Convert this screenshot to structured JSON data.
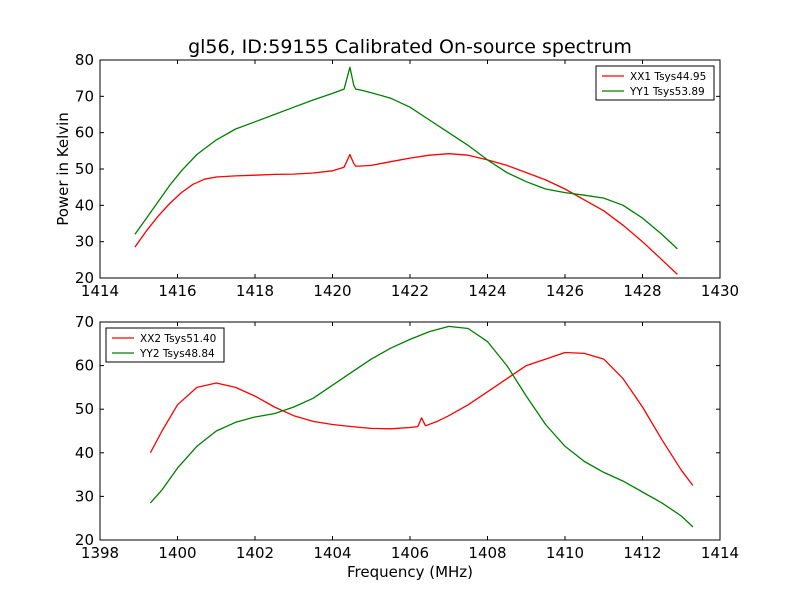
{
  "figure": {
    "title": "gl56, ID:59155 Calibrated On-source spectrum",
    "ylabel": "Power in Kelvin",
    "xlabel": "Frequency (MHz)"
  },
  "chart_data": [
    {
      "type": "line",
      "xlim": [
        1414,
        1430
      ],
      "ylim": [
        20,
        80
      ],
      "xticks": [
        1414,
        1416,
        1418,
        1420,
        1422,
        1424,
        1426,
        1428,
        1430
      ],
      "yticks": [
        20,
        30,
        40,
        50,
        60,
        70,
        80
      ],
      "legend_position": "top-right",
      "series": [
        {
          "name": "XX1 Tsys44.95",
          "color": "#ff0000",
          "x": [
            1414.9,
            1415.2,
            1415.5,
            1415.8,
            1416.1,
            1416.4,
            1416.7,
            1417.0,
            1417.5,
            1418.0,
            1418.5,
            1419.0,
            1419.5,
            1420.0,
            1420.3,
            1420.45,
            1420.55,
            1420.6,
            1420.7,
            1421.0,
            1421.5,
            1422.0,
            1422.5,
            1423.0,
            1423.5,
            1424.0,
            1424.5,
            1425.0,
            1425.5,
            1426.0,
            1426.5,
            1427.0,
            1427.5,
            1428.0,
            1428.5,
            1428.9
          ],
          "y": [
            28.5,
            33.0,
            37.0,
            40.5,
            43.5,
            45.8,
            47.2,
            47.8,
            48.1,
            48.3,
            48.5,
            48.6,
            48.9,
            49.5,
            50.5,
            54.0,
            51.5,
            50.8,
            50.8,
            51.0,
            52.0,
            53.0,
            53.8,
            54.2,
            53.8,
            52.5,
            51.0,
            49.0,
            47.0,
            44.5,
            41.5,
            38.5,
            34.5,
            30.0,
            25.0,
            21.0
          ]
        },
        {
          "name": "YY1 Tsys53.89",
          "color": "#008000",
          "x": [
            1414.9,
            1415.2,
            1415.5,
            1415.8,
            1416.1,
            1416.5,
            1417.0,
            1417.5,
            1418.0,
            1418.5,
            1419.0,
            1419.5,
            1420.0,
            1420.3,
            1420.45,
            1420.55,
            1420.6,
            1420.7,
            1421.0,
            1421.5,
            1422.0,
            1422.5,
            1423.0,
            1423.5,
            1424.0,
            1424.5,
            1425.0,
            1425.5,
            1426.0,
            1426.5,
            1427.0,
            1427.5,
            1428.0,
            1428.5,
            1428.9
          ],
          "y": [
            32.0,
            36.5,
            41.0,
            45.5,
            49.5,
            54.0,
            58.0,
            61.0,
            63.0,
            65.0,
            67.0,
            69.0,
            70.8,
            72.0,
            78.0,
            73.0,
            72.0,
            71.8,
            71.0,
            69.5,
            67.0,
            63.5,
            60.0,
            56.5,
            52.5,
            49.0,
            46.5,
            44.5,
            43.5,
            42.8,
            42.0,
            40.0,
            36.5,
            32.0,
            28.0
          ]
        }
      ]
    },
    {
      "type": "line",
      "xlim": [
        1398,
        1414
      ],
      "ylim": [
        20,
        70
      ],
      "xticks": [
        1398,
        1400,
        1402,
        1404,
        1406,
        1408,
        1410,
        1412,
        1414
      ],
      "yticks": [
        20,
        30,
        40,
        50,
        60,
        70
      ],
      "legend_position": "top-left",
      "series": [
        {
          "name": "XX2 Tsys51.40",
          "color": "#ff0000",
          "x": [
            1399.3,
            1399.6,
            1400.0,
            1400.5,
            1401.0,
            1401.5,
            1402.0,
            1402.5,
            1403.0,
            1403.5,
            1404.0,
            1404.5,
            1405.0,
            1405.5,
            1406.0,
            1406.2,
            1406.3,
            1406.4,
            1406.7,
            1407.0,
            1407.5,
            1408.0,
            1408.5,
            1409.0,
            1409.5,
            1410.0,
            1410.5,
            1411.0,
            1411.5,
            1412.0,
            1412.5,
            1413.0,
            1413.3
          ],
          "y": [
            40.0,
            45.0,
            51.0,
            55.0,
            56.0,
            55.0,
            53.0,
            50.5,
            48.5,
            47.2,
            46.5,
            46.0,
            45.6,
            45.5,
            45.8,
            46.0,
            48.0,
            46.2,
            47.2,
            48.5,
            51.0,
            54.0,
            57.0,
            60.0,
            61.5,
            63.0,
            62.8,
            61.5,
            57.0,
            50.5,
            43.0,
            36.0,
            32.5
          ]
        },
        {
          "name": "YY2 Tsys48.84",
          "color": "#008000",
          "x": [
            1399.3,
            1399.6,
            1400.0,
            1400.5,
            1401.0,
            1401.5,
            1402.0,
            1402.5,
            1403.0,
            1403.5,
            1404.0,
            1404.5,
            1405.0,
            1405.5,
            1406.0,
            1406.5,
            1407.0,
            1407.5,
            1408.0,
            1408.5,
            1409.0,
            1409.5,
            1410.0,
            1410.5,
            1411.0,
            1411.5,
            1412.0,
            1412.5,
            1413.0,
            1413.3
          ],
          "y": [
            28.5,
            31.5,
            36.5,
            41.5,
            45.0,
            47.0,
            48.2,
            49.0,
            50.5,
            52.5,
            55.5,
            58.5,
            61.5,
            64.0,
            66.0,
            67.8,
            69.0,
            68.5,
            65.5,
            60.0,
            53.0,
            46.5,
            41.5,
            38.0,
            35.5,
            33.5,
            31.0,
            28.5,
            25.5,
            23.0
          ]
        }
      ]
    }
  ]
}
